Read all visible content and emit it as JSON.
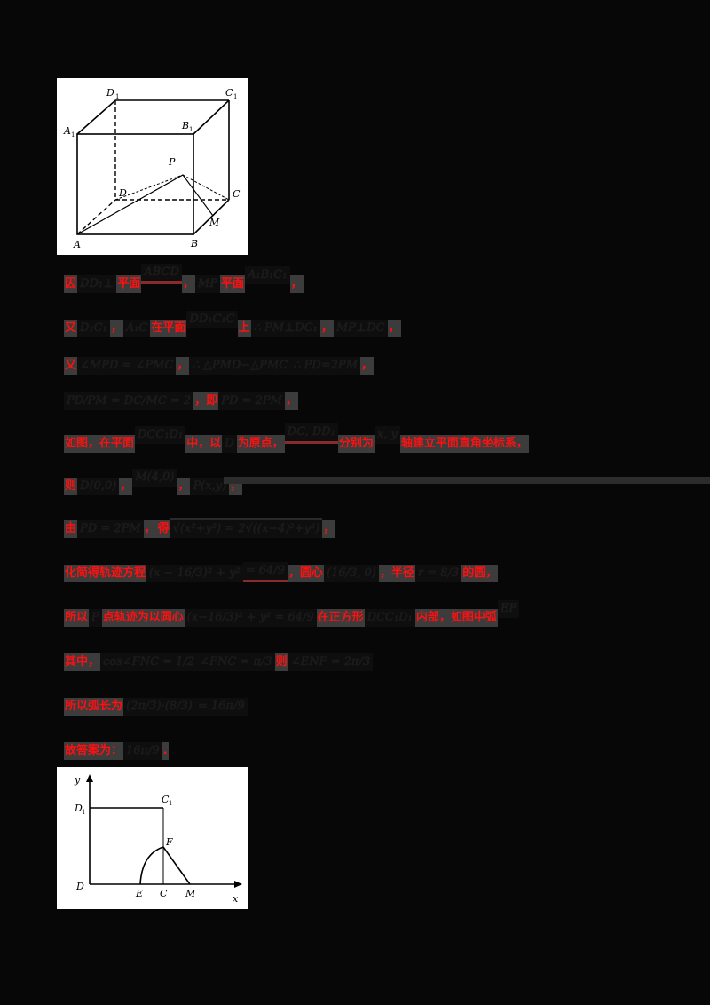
{
  "figure1": {
    "labels": {
      "A": "A",
      "B": "B",
      "C": "C",
      "D": "D",
      "A1": "A",
      "B1": "B",
      "C1": "C",
      "D1": "D",
      "sub": "1",
      "P": "P",
      "M": "M"
    }
  },
  "figure2": {
    "labels": {
      "y": "y",
      "x": "x",
      "D1": "D",
      "sub": "1",
      "C1": "C",
      "F": "F",
      "D": "D",
      "E": "E",
      "C": "C",
      "M": "M"
    }
  },
  "lines": [
    {
      "segments": [
        {
          "t": "red",
          "v": "因"
        },
        {
          "t": "math",
          "v": "DD₁⊥"
        },
        {
          "t": "red",
          "v": "平面"
        },
        {
          "t": "math",
          "v": "ABCD",
          "up": true,
          "uline": true
        },
        {
          "t": "red",
          "v": "，"
        },
        {
          "t": "math",
          "v": "MP"
        },
        {
          "t": "red",
          "v": "平面"
        },
        {
          "t": "math",
          "v": "A₁B₁C₁",
          "up": true
        },
        {
          "t": "red",
          "v": "，"
        }
      ]
    },
    {
      "segments": [
        {
          "t": "red",
          "v": "又"
        },
        {
          "t": "math",
          "v": "D₁C₁"
        },
        {
          "t": "red",
          "v": "，"
        },
        {
          "t": "math",
          "v": "A₁C"
        },
        {
          "t": "red",
          "v": "在平面"
        },
        {
          "t": "math",
          "v": "DD₁C₁C",
          "up": true
        },
        {
          "t": "red",
          "v": "上"
        },
        {
          "t": "math",
          "v": "∴ PM⊥DC₁"
        },
        {
          "t": "red",
          "v": "，"
        },
        {
          "t": "math",
          "v": "MP⊥DC"
        },
        {
          "t": "red",
          "v": "，"
        }
      ]
    },
    {
      "segments": [
        {
          "t": "red",
          "v": "又"
        },
        {
          "t": "math",
          "v": "∠MPD = ∠PMC"
        },
        {
          "t": "red",
          "v": "，"
        },
        {
          "t": "math",
          "v": "∴ △PMD∽△PMC"
        },
        {
          "t": "math",
          "v": "∴ PD=2PM"
        },
        {
          "t": "red",
          "v": "，"
        }
      ]
    },
    {
      "segments": [
        {
          "t": "math",
          "v": "PD/PM = DC/MC = 2"
        },
        {
          "t": "red",
          "v": "，即"
        },
        {
          "t": "math",
          "v": "PD = 2PM"
        },
        {
          "t": "red",
          "v": "，"
        }
      ]
    },
    {
      "segments": [
        {
          "t": "red",
          "v": "如图，在平面"
        },
        {
          "t": "math",
          "v": "DCC₁D₁",
          "up": true
        },
        {
          "t": "red",
          "v": "中，以"
        },
        {
          "t": "math",
          "v": "D"
        },
        {
          "t": "red",
          "v": "为原点，"
        },
        {
          "t": "math",
          "v": "DC, DD₁",
          "up": true,
          "uline": true
        },
        {
          "t": "red",
          "v": "分别为"
        },
        {
          "t": "math",
          "v": "x, y",
          "up": true
        },
        {
          "t": "red",
          "v": "轴建立平面直角坐标系，"
        }
      ]
    },
    {
      "segments": [
        {
          "t": "red",
          "v": "则"
        },
        {
          "t": "math",
          "v": "D(0,0)"
        },
        {
          "t": "red",
          "v": "，"
        },
        {
          "t": "math",
          "v": "M(4,0)",
          "up": true
        },
        {
          "t": "red",
          "v": "，"
        },
        {
          "t": "math",
          "v": "P(x,y)"
        },
        {
          "t": "red",
          "v": "，"
        }
      ]
    },
    {
      "segments": [
        {
          "t": "red",
          "v": "由"
        },
        {
          "t": "math",
          "v": "PD = 2PM"
        },
        {
          "t": "red",
          "v": "，"
        },
        {
          "t": "red",
          "v": "得"
        },
        {
          "t": "math",
          "v": "√(x²+y²) = 2√((x−4)²+y²)",
          "over": true
        },
        {
          "t": "red",
          "v": "，"
        }
      ]
    },
    {
      "segments": [
        {
          "t": "red",
          "v": "化简得轨迹方程"
        },
        {
          "t": "math",
          "v": "(x − 16/3)² + y²"
        },
        {
          "t": "math",
          "v": "= 64/9",
          "uline": true
        },
        {
          "t": "red",
          "v": "，圆心"
        },
        {
          "t": "math",
          "v": "(16/3, 0)"
        },
        {
          "t": "red",
          "v": "，半径"
        },
        {
          "t": "math",
          "v": "r = 8/3"
        },
        {
          "t": "red",
          "v": "的圆，"
        }
      ]
    },
    {
      "segments": [
        {
          "t": "red",
          "v": "所以"
        },
        {
          "t": "math",
          "v": "P"
        },
        {
          "t": "red",
          "v": "点轨迹为以圆心"
        },
        {
          "t": "math",
          "v": "(x−16/3)² + y² = 64/9"
        },
        {
          "t": "red",
          "v": "在正方形"
        },
        {
          "t": "math",
          "v": "DCC₁D₁"
        },
        {
          "t": "red",
          "v": "内部，如图中弧"
        },
        {
          "t": "math",
          "v": "EF",
          "up": true
        }
      ]
    },
    {
      "segments": [
        {
          "t": "red",
          "v": "其中，"
        },
        {
          "t": "math",
          "v": "cos∠FNC = 1/2"
        },
        {
          "t": "math",
          "v": "∠FNC = π/3"
        },
        {
          "t": "red",
          "v": "则"
        },
        {
          "t": "math",
          "v": "∠ENF = 2π/3"
        }
      ]
    },
    {
      "segments": [
        {
          "t": "red",
          "v": "所以弧长为"
        },
        {
          "t": "math",
          "v": "(2π/3)·(8/3)"
        },
        {
          "t": "math",
          "v": "= 16π/9"
        }
      ]
    },
    {
      "segments": [
        {
          "t": "red",
          "v": "故答案为："
        },
        {
          "t": "math",
          "v": "16π/9"
        },
        {
          "t": "red",
          "v": "."
        }
      ]
    }
  ]
}
